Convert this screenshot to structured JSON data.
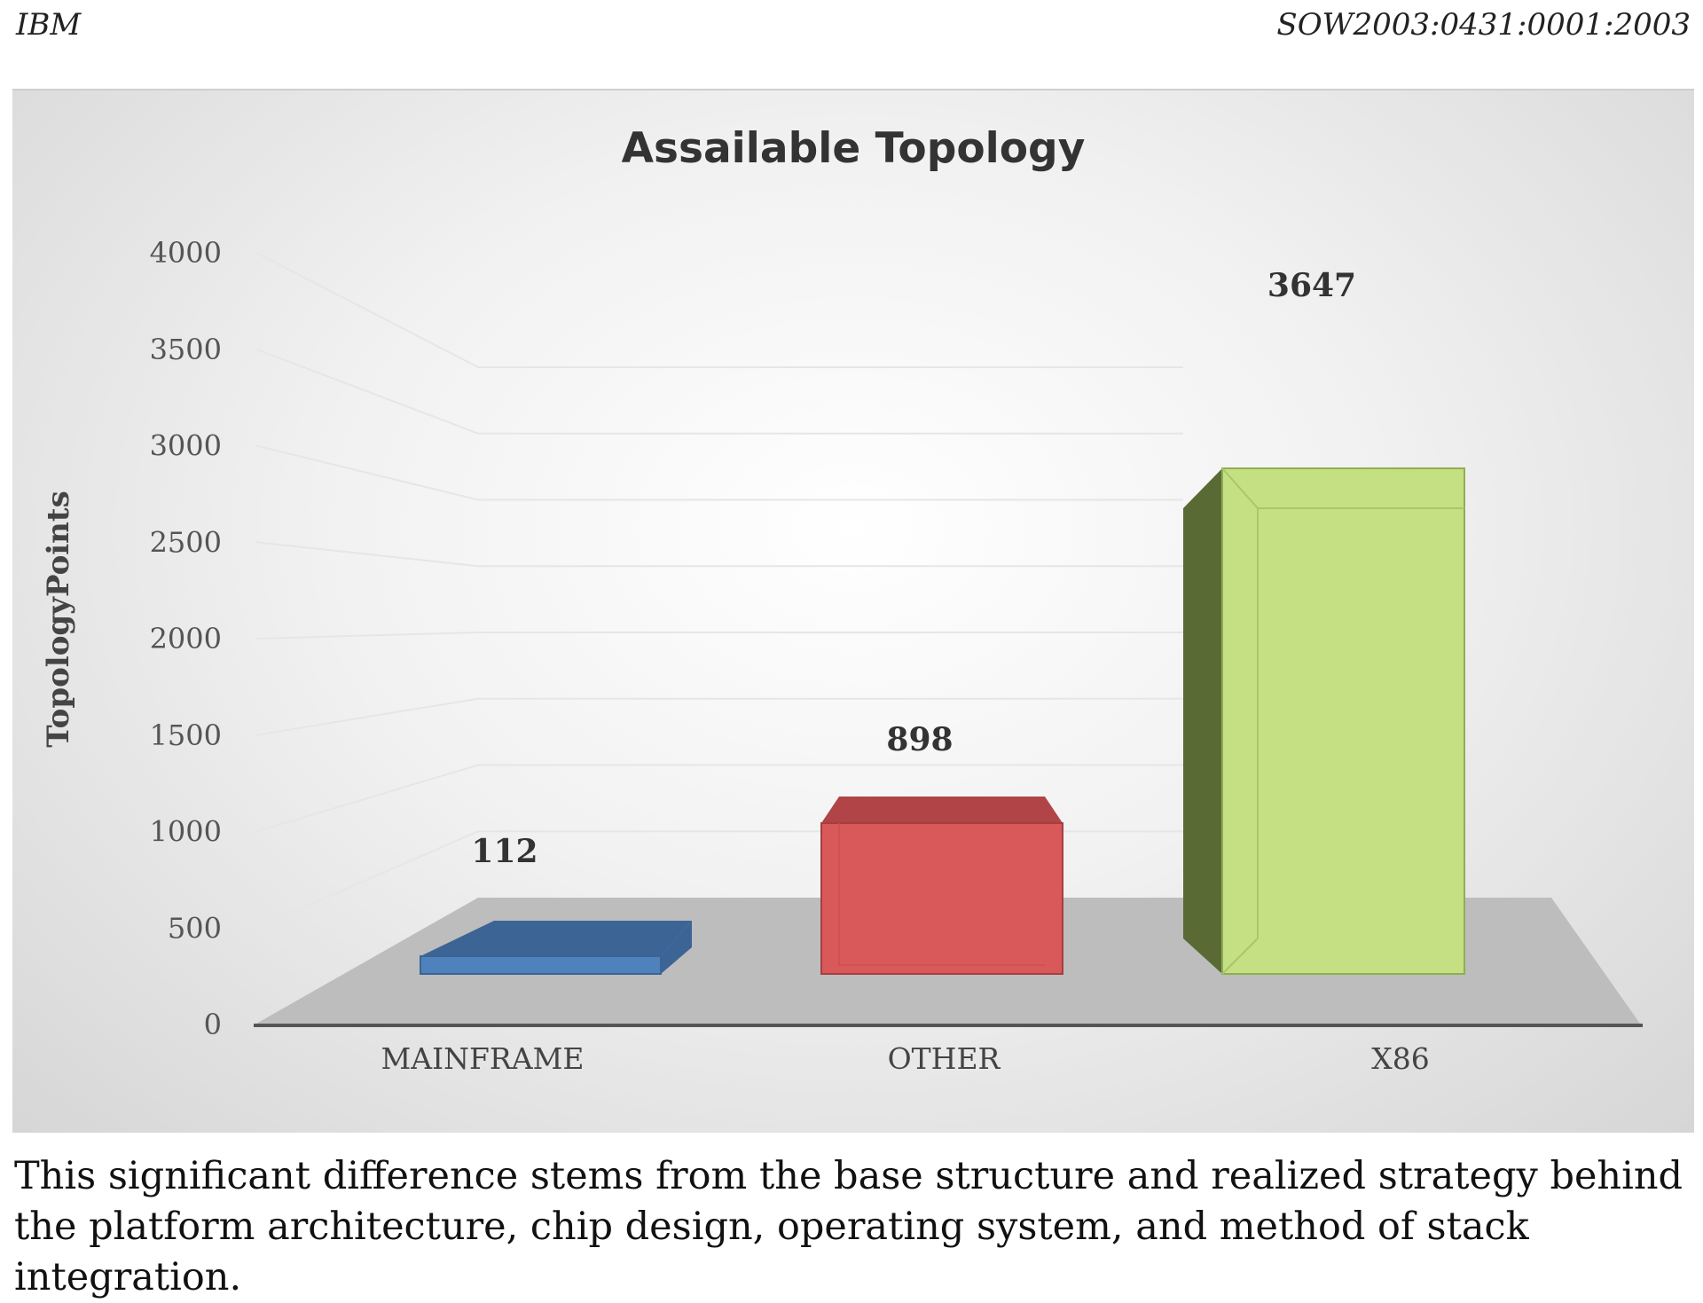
{
  "header": {
    "left": "IBM",
    "right": "SOW2003:0431:0001:2003"
  },
  "chart_data": {
    "type": "bar",
    "title": "Assailable Topology",
    "xlabel": "",
    "ylabel": "TopologyPoints",
    "categories": [
      "MAINFRAME",
      "OTHER",
      "X86"
    ],
    "values": [
      112,
      898,
      3647
    ],
    "ylim": [
      0,
      4000
    ],
    "yticks": [
      0,
      500,
      1000,
      1500,
      2000,
      2500,
      3000,
      3500,
      4000
    ],
    "colors": [
      "#4f81bd",
      "#d9595b",
      "#c4e082"
    ],
    "side_colors": [
      "#3c6494",
      "#b04446",
      "#5a6a35"
    ],
    "grid": true,
    "legend": "none",
    "data_labels": true,
    "style": "3d-column"
  },
  "caption": "This significant difference stems from the base structure and realized strategy behind the platform architecture, chip design, operating system, and method of stack integration."
}
